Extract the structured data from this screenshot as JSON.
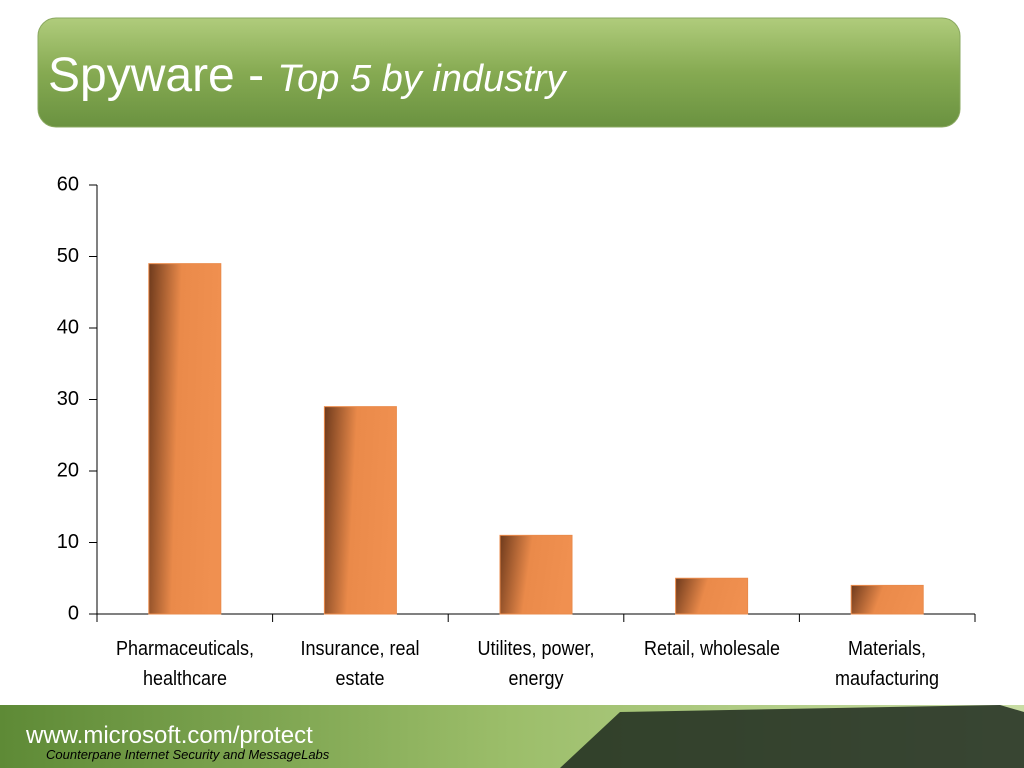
{
  "chart_data": {
    "type": "bar",
    "title": "Spyware -",
    "subtitle": "Top 5 by industry",
    "categories": [
      "Pharmaceuticals, healthcare",
      "Insurance, real estate",
      "Utilites, power, energy",
      "Retail, wholesale",
      "Materials, maufacturing"
    ],
    "values": [
      49,
      29,
      11,
      5,
      4
    ],
    "color": "#ea8a4a",
    "ylim": [
      0,
      60
    ],
    "yticks": [
      0,
      10,
      20,
      30,
      40,
      50,
      60
    ],
    "grid": false
  },
  "footer": {
    "url": "www.microsoft.com/protect",
    "source": "Counterpane Internet Security and MessageLabs"
  }
}
